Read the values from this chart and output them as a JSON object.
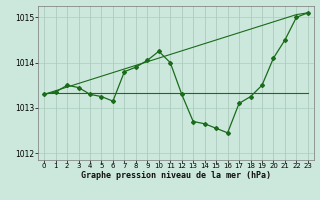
{
  "x": [
    0,
    1,
    2,
    3,
    4,
    5,
    6,
    7,
    8,
    9,
    10,
    11,
    12,
    13,
    14,
    15,
    16,
    17,
    18,
    19,
    20,
    21,
    22,
    23
  ],
  "y_main": [
    1013.3,
    1013.35,
    1013.5,
    1013.45,
    1013.3,
    1013.25,
    1013.15,
    1013.8,
    1013.9,
    1014.05,
    1014.25,
    1014.0,
    1013.3,
    1012.7,
    1012.65,
    1012.55,
    1012.45,
    1013.1,
    1013.25,
    1013.5,
    1014.1,
    1014.5,
    1015.0,
    1015.1
  ],
  "y_line_flat": [
    1013.33,
    1013.33,
    1013.33,
    1013.33,
    1013.33,
    1013.33,
    1013.33,
    1013.33,
    1013.33,
    1013.33,
    1013.33,
    1013.33,
    1013.33,
    1013.33,
    1013.33,
    1013.33,
    1013.33,
    1013.33,
    1013.33,
    1013.33,
    1013.33,
    1013.33,
    1013.33,
    1013.33
  ],
  "y_line_diag": [
    1013.3,
    1013.38,
    1013.46,
    1013.54,
    1013.62,
    1013.7,
    1013.78,
    1013.86,
    1013.94,
    1014.02,
    1014.1,
    1014.18,
    1014.26,
    1014.34,
    1014.42,
    1014.5,
    1014.58,
    1014.66,
    1014.74,
    1014.82,
    1014.9,
    1014.98,
    1015.06,
    1015.1
  ],
  "ylim": [
    1011.85,
    1015.25
  ],
  "xlim": [
    -0.5,
    23.5
  ],
  "yticks": [
    1012,
    1013,
    1014,
    1015
  ],
  "xticks": [
    0,
    1,
    2,
    3,
    4,
    5,
    6,
    7,
    8,
    9,
    10,
    11,
    12,
    13,
    14,
    15,
    16,
    17,
    18,
    19,
    20,
    21,
    22,
    23
  ],
  "line_color": "#1a6b1a",
  "bg_color": "#cce8dc",
  "grid_color": "#aacfbf",
  "xlabel": "Graphe pression niveau de la mer (hPa)"
}
